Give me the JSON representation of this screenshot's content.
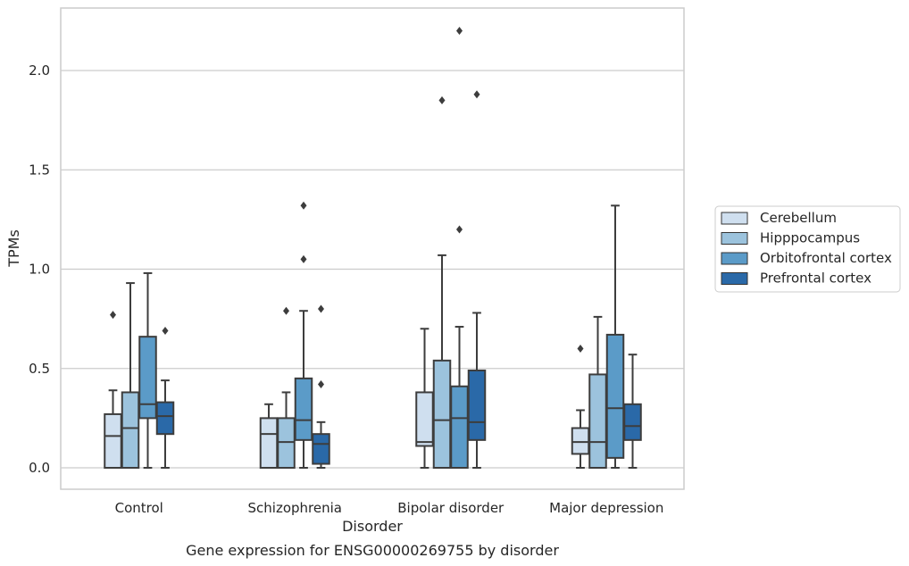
{
  "chart_data": {
    "type": "box",
    "caption": "Gene expression for ENSG00000269755 by disorder",
    "xlabel": "Disorder",
    "ylabel": "TPMs",
    "ylim": [
      -0.1,
      2.33
    ],
    "yticks": [
      0.0,
      0.5,
      1.0,
      1.5,
      2.0
    ],
    "ytick_labels": [
      "0.0",
      "0.5",
      "1.0",
      "1.5",
      "2.0"
    ],
    "grid": "horizontal",
    "legend_position": "right",
    "categories": [
      "Control",
      "Schizophrenia",
      "Bipolar disorder",
      "Major depression"
    ],
    "series": [
      {
        "name": "Cerebellum",
        "color": "#cfdfef",
        "boxes": [
          {
            "whislo": 0.0,
            "q1": 0.0,
            "med": 0.16,
            "q3": 0.27,
            "whishi": 0.39,
            "fliers": [
              0.77
            ]
          },
          {
            "whislo": 0.0,
            "q1": 0.0,
            "med": 0.17,
            "q3": 0.25,
            "whishi": 0.32,
            "fliers": []
          },
          {
            "whislo": 0.0,
            "q1": 0.11,
            "med": 0.13,
            "q3": 0.38,
            "whishi": 0.7,
            "fliers": []
          },
          {
            "whislo": 0.0,
            "q1": 0.07,
            "med": 0.13,
            "q3": 0.2,
            "whishi": 0.29,
            "fliers": [
              0.6
            ]
          }
        ]
      },
      {
        "name": "Hipppocampus",
        "color": "#9cc3dd",
        "boxes": [
          {
            "whislo": 0.0,
            "q1": 0.0,
            "med": 0.2,
            "q3": 0.38,
            "whishi": 0.93,
            "fliers": []
          },
          {
            "whislo": 0.0,
            "q1": 0.0,
            "med": 0.13,
            "q3": 0.25,
            "whishi": 0.38,
            "fliers": [
              0.79
            ]
          },
          {
            "whislo": 0.0,
            "q1": 0.0,
            "med": 0.24,
            "q3": 0.54,
            "whishi": 1.07,
            "fliers": [
              1.85
            ]
          },
          {
            "whislo": 0.0,
            "q1": 0.0,
            "med": 0.13,
            "q3": 0.47,
            "whishi": 0.76,
            "fliers": []
          }
        ]
      },
      {
        "name": "Orbitofrontal cortex",
        "color": "#5b9bc8",
        "boxes": [
          {
            "whislo": 0.0,
            "q1": 0.25,
            "med": 0.32,
            "q3": 0.66,
            "whishi": 0.98,
            "fliers": []
          },
          {
            "whislo": 0.0,
            "q1": 0.14,
            "med": 0.24,
            "q3": 0.45,
            "whishi": 0.79,
            "fliers": [
              1.05,
              1.32
            ]
          },
          {
            "whislo": 0.0,
            "q1": 0.0,
            "med": 0.25,
            "q3": 0.41,
            "whishi": 0.71,
            "fliers": [
              1.2,
              2.2
            ]
          },
          {
            "whislo": 0.0,
            "q1": 0.05,
            "med": 0.3,
            "q3": 0.67,
            "whishi": 1.32,
            "fliers": []
          }
        ]
      },
      {
        "name": "Prefrontal cortex",
        "color": "#2a69a8",
        "boxes": [
          {
            "whislo": 0.0,
            "q1": 0.17,
            "med": 0.26,
            "q3": 0.33,
            "whishi": 0.44,
            "fliers": [
              0.69
            ]
          },
          {
            "whislo": 0.0,
            "q1": 0.02,
            "med": 0.12,
            "q3": 0.17,
            "whishi": 0.23,
            "fliers": [
              0.42,
              0.8
            ]
          },
          {
            "whislo": 0.0,
            "q1": 0.14,
            "med": 0.23,
            "q3": 0.49,
            "whishi": 0.78,
            "fliers": [
              1.88
            ]
          },
          {
            "whislo": 0.0,
            "q1": 0.14,
            "med": 0.21,
            "q3": 0.32,
            "whishi": 0.57,
            "fliers": []
          }
        ]
      }
    ]
  }
}
